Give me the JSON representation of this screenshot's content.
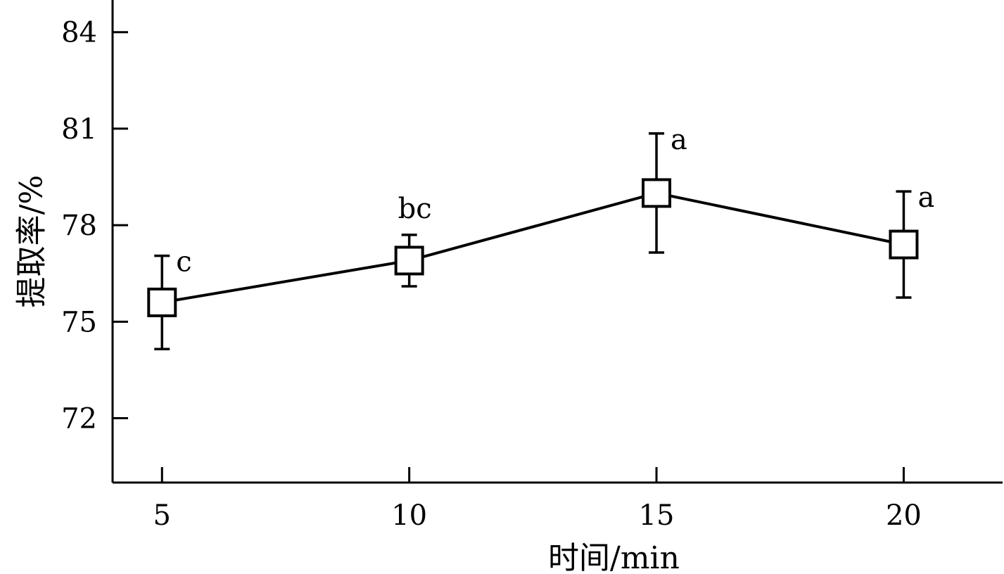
{
  "chart_data": {
    "type": "line",
    "xlabel": "时间/min",
    "ylabel": "提取率/%",
    "x": [
      5,
      10,
      15,
      20
    ],
    "xticks": [
      5,
      10,
      15,
      20
    ],
    "yticks": [
      72,
      75,
      78,
      81,
      84
    ],
    "xlim": [
      4,
      22
    ],
    "ylim": [
      70,
      85
    ],
    "series": [
      {
        "values": [
          75.6,
          76.9,
          79.0,
          77.4
        ],
        "error": [
          1.45,
          0.8,
          1.85,
          1.65
        ],
        "significance": [
          "c",
          "bc",
          "a",
          "a"
        ]
      }
    ],
    "marker": "open-square",
    "grid": false,
    "legend": "none",
    "colors": {
      "line": "#000000",
      "background": "#ffffff"
    }
  }
}
